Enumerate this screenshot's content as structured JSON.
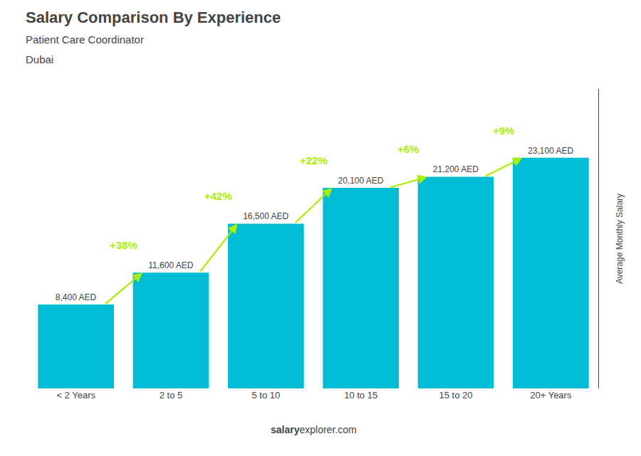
{
  "chart_data": {
    "type": "bar",
    "title": "Salary Comparison By Experience",
    "subtitle": [
      "Patient Care Coordinator",
      "Dubai"
    ],
    "ylabel": "Average Monthly Salary",
    "categories": [
      "< 2 Years",
      "2 to 5",
      "5 to 10",
      "10 to 15",
      "15 to 20",
      "20+ Years"
    ],
    "values": [
      8400,
      11600,
      16500,
      20100,
      21200,
      23100
    ],
    "value_labels": [
      "8,400 AED",
      "11,600 AED",
      "16,500 AED",
      "20,100 AED",
      "21,200 AED",
      "23,100 AED"
    ],
    "data_labels": true,
    "color": "#00bcd4",
    "ylim": [
      0,
      30000
    ],
    "tick_labels": "x",
    "grid": false,
    "annotations": [
      {
        "text": "+38%",
        "from": "< 2 Years",
        "to": "2 to 5",
        "color": "#aaee00"
      },
      {
        "text": "+42%",
        "from": "2 to 5",
        "to": "5 to 10",
        "color": "#aaee00"
      },
      {
        "text": "+22%",
        "from": "5 to 10",
        "to": "10 to 15",
        "color": "#aaee00"
      },
      {
        "text": "+6%",
        "from": "10 to 15",
        "to": "15 to 20",
        "color": "#aaee00"
      },
      {
        "text": "+9%",
        "from": "15 to 20",
        "to": "20+ Years",
        "color": "#aaee00"
      }
    ],
    "footer": [
      "salary",
      "explorer.com"
    ]
  }
}
